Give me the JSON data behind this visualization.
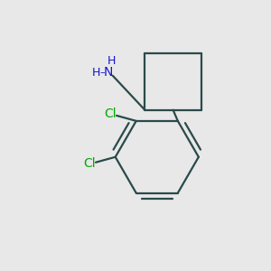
{
  "background_color": "#e8e8e8",
  "bond_color": "#2a4a4a",
  "nitrogen_color": "#1414cc",
  "chlorine_color": "#00aa00",
  "line_width": 1.6,
  "figsize": [
    3.0,
    3.0
  ],
  "dpi": 100,
  "xlim": [
    0,
    10
  ],
  "ylim": [
    0,
    10
  ]
}
